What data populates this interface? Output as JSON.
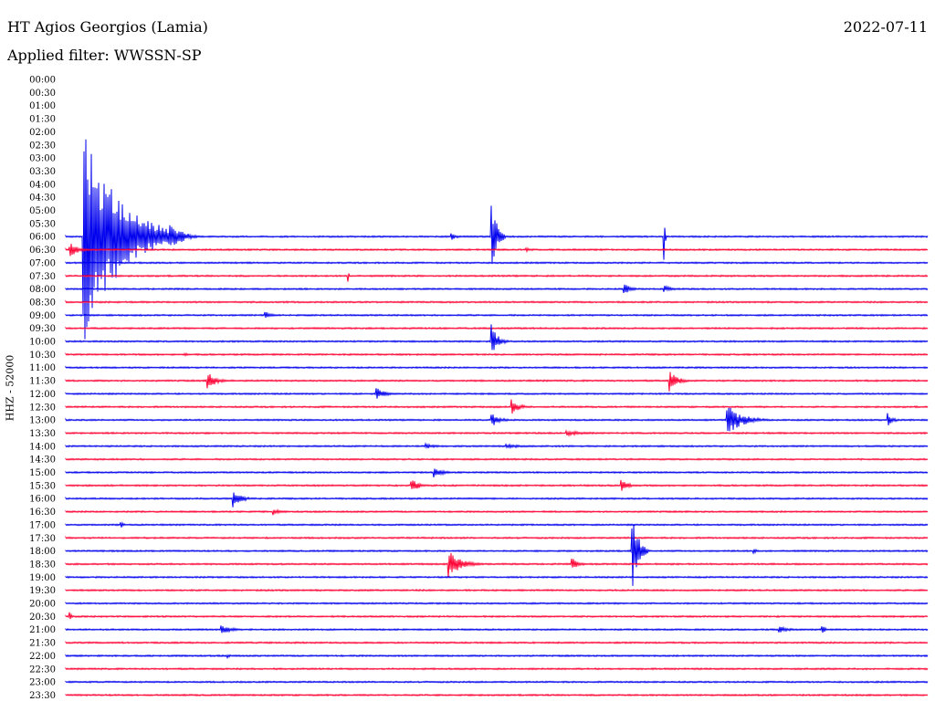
{
  "header": {
    "station": "HT Agios Georgios (Lamia)",
    "date": "2022-07-11",
    "filter": "Applied filter: WWSSN-SP",
    "channel": "HHZ - 52000"
  },
  "colors": {
    "even_row": "#0000ee",
    "odd_row": "#ff0033"
  },
  "chart_data": {
    "type": "line",
    "title": "HT Agios Georgios (Lamia)",
    "subtitle": "Applied filter: WWSSN-SP",
    "ylabel": "HHZ - 52000",
    "row_labels": [
      "00:00",
      "00:30",
      "01:00",
      "01:30",
      "02:00",
      "02:30",
      "03:00",
      "03:30",
      "04:00",
      "04:30",
      "05:00",
      "05:30",
      "06:00",
      "06:30",
      "07:00",
      "07:30",
      "08:00",
      "08:30",
      "09:00",
      "09:30",
      "10:00",
      "10:30",
      "11:00",
      "11:30",
      "12:00",
      "12:30",
      "13:00",
      "13:30",
      "14:00",
      "14:30",
      "15:00",
      "15:30",
      "16:00",
      "16:30",
      "17:00",
      "17:30",
      "18:00",
      "18:30",
      "19:00",
      "19:30",
      "20:00",
      "20:30",
      "21:00",
      "21:30",
      "22:00",
      "22:30",
      "23:00",
      "23:30"
    ],
    "first_trace_row": 12,
    "trace_span_minutes": 30,
    "events": [
      {
        "row": 12,
        "minute": 0.6,
        "amplitude": 8.5,
        "duration": 3.5,
        "note": "large teleseism coda"
      },
      {
        "row": 12,
        "minute": 3.6,
        "amplitude": 1.2,
        "duration": 1.2
      },
      {
        "row": 12,
        "minute": 13.4,
        "amplitude": 0.3,
        "duration": 0.6
      },
      {
        "row": 12,
        "minute": 14.8,
        "amplitude": 3.5,
        "duration": 0.5
      },
      {
        "row": 13,
        "minute": 0.1,
        "amplitude": 0.6,
        "duration": 1.0
      },
      {
        "row": 13,
        "minute": 16.0,
        "amplitude": 0.2,
        "duration": 0.5
      },
      {
        "row": 12,
        "minute": 20.8,
        "amplitude": 6.0,
        "duration": 0.1,
        "note": "step offset"
      },
      {
        "row": 15,
        "minute": 9.8,
        "amplitude": 1.0,
        "duration": 0.1
      },
      {
        "row": 16,
        "minute": 19.4,
        "amplitude": 0.6,
        "duration": 0.6
      },
      {
        "row": 16,
        "minute": 20.8,
        "amplitude": 0.3,
        "duration": 0.8
      },
      {
        "row": 18,
        "minute": 6.9,
        "amplitude": 0.5,
        "duration": 0.6
      },
      {
        "row": 20,
        "minute": 14.8,
        "amplitude": 1.5,
        "duration": 0.6
      },
      {
        "row": 21,
        "minute": 4.1,
        "amplitude": 0.2,
        "duration": 0.4
      },
      {
        "row": 23,
        "minute": 4.9,
        "amplitude": 0.9,
        "duration": 0.8
      },
      {
        "row": 23,
        "minute": 21.0,
        "amplitude": 0.9,
        "duration": 0.8
      },
      {
        "row": 24,
        "minute": 10.8,
        "amplitude": 0.5,
        "duration": 0.8
      },
      {
        "row": 25,
        "minute": 15.5,
        "amplitude": 0.6,
        "duration": 0.8
      },
      {
        "row": 26,
        "minute": 14.8,
        "amplitude": 0.6,
        "duration": 0.8
      },
      {
        "row": 26,
        "minute": 23.0,
        "amplitude": 1.2,
        "duration": 1.5
      },
      {
        "row": 26,
        "minute": 28.6,
        "amplitude": 0.6,
        "duration": 0.5
      },
      {
        "row": 27,
        "minute": 17.4,
        "amplitude": 0.2,
        "duration": 2.5
      },
      {
        "row": 28,
        "minute": 12.5,
        "amplitude": 0.2,
        "duration": 1.5
      },
      {
        "row": 28,
        "minute": 15.3,
        "amplitude": 0.2,
        "duration": 1.5
      },
      {
        "row": 30,
        "minute": 12.8,
        "amplitude": 0.4,
        "duration": 1.0
      },
      {
        "row": 31,
        "minute": 12.0,
        "amplitude": 0.6,
        "duration": 0.8
      },
      {
        "row": 31,
        "minute": 19.3,
        "amplitude": 0.5,
        "duration": 0.8
      },
      {
        "row": 32,
        "minute": 5.8,
        "amplitude": 0.8,
        "duration": 0.8
      },
      {
        "row": 33,
        "minute": 7.2,
        "amplitude": 0.3,
        "duration": 0.6
      },
      {
        "row": 34,
        "minute": 1.9,
        "amplitude": 0.3,
        "duration": 0.3
      },
      {
        "row": 36,
        "minute": 19.7,
        "amplitude": 3.5,
        "duration": 0.6
      },
      {
        "row": 36,
        "minute": 23.9,
        "amplitude": 0.3,
        "duration": 0.4
      },
      {
        "row": 37,
        "minute": 13.3,
        "amplitude": 1.2,
        "duration": 1.2
      },
      {
        "row": 37,
        "minute": 17.6,
        "amplitude": 0.6,
        "duration": 0.6
      },
      {
        "row": 41,
        "minute": 0.1,
        "amplitude": 0.7,
        "duration": 0.2
      },
      {
        "row": 42,
        "minute": 5.4,
        "amplitude": 0.4,
        "duration": 1.0
      },
      {
        "row": 42,
        "minute": 24.8,
        "amplitude": 0.3,
        "duration": 1.0
      },
      {
        "row": 42,
        "minute": 26.3,
        "amplitude": 0.5,
        "duration": 0.3
      },
      {
        "row": 44,
        "minute": 5.6,
        "amplitude": 0.2,
        "duration": 0.4
      }
    ]
  }
}
